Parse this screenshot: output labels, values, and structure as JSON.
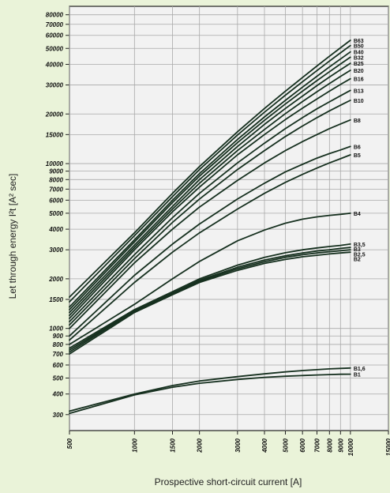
{
  "chart_data": {
    "type": "line",
    "title": "",
    "xlabel": "Prospective short-circuit current [A]",
    "ylabel": "Let through energy I²t [A² sec]",
    "x_scale": "log",
    "y_scale": "log",
    "xlim": [
      500,
      15000
    ],
    "ylim": [
      240,
      90000
    ],
    "grid": true,
    "x_ticks": [
      500,
      1000,
      1500,
      2000,
      3000,
      4000,
      5000,
      6000,
      7000,
      8000,
      9000,
      10000,
      15000
    ],
    "x_tick_labels": [
      "500",
      "1000",
      "1500",
      "2000",
      "3000",
      "4000",
      "5000",
      "6000",
      "7000",
      "8000",
      "9000",
      "10000",
      "15000"
    ],
    "y_ticks": [
      300,
      400,
      500,
      600,
      700,
      800,
      900,
      1000,
      1500,
      2000,
      3000,
      4000,
      5000,
      6000,
      7000,
      8000,
      9000,
      10000,
      15000,
      20000,
      30000,
      40000,
      50000,
      60000,
      70000,
      80000
    ],
    "y_tick_labels": [
      "300",
      "400",
      "500",
      "600",
      "700",
      "800",
      "900",
      "1000",
      "1500",
      "2000",
      "3000",
      "4000",
      "5000",
      "6000",
      "7000",
      "8000",
      "9000",
      "10000",
      "15000",
      "20000",
      "30000",
      "40000",
      "50000",
      "60000",
      "70000",
      "80000"
    ],
    "x": [
      500,
      1000,
      1500,
      2000,
      3000,
      4000,
      5000,
      6000,
      7000,
      8000,
      9000,
      10000
    ],
    "series": [
      {
        "name": "B1",
        "values": [
          305,
          395,
          440,
          465,
          490,
          505,
          513,
          518,
          522,
          525,
          527,
          528
        ]
      },
      {
        "name": "B1,6",
        "values": [
          315,
          400,
          450,
          480,
          510,
          530,
          545,
          555,
          562,
          568,
          572,
          575
        ]
      },
      {
        "name": "B2",
        "values": [
          700,
          1250,
          1600,
          1900,
          2250,
          2480,
          2620,
          2720,
          2780,
          2830,
          2870,
          2900
        ]
      },
      {
        "name": "B2,5",
        "values": [
          720,
          1270,
          1620,
          1930,
          2300,
          2540,
          2700,
          2800,
          2870,
          2920,
          2960,
          3000
        ]
      },
      {
        "name": "B3",
        "values": [
          740,
          1280,
          1640,
          1960,
          2350,
          2600,
          2760,
          2870,
          2950,
          3000,
          3060,
          3100
        ]
      },
      {
        "name": "B3,5",
        "values": [
          760,
          1300,
          1670,
          2000,
          2420,
          2700,
          2880,
          3000,
          3080,
          3140,
          3190,
          3250
        ]
      },
      {
        "name": "B4",
        "values": [
          800,
          1400,
          2000,
          2550,
          3400,
          3950,
          4350,
          4600,
          4750,
          4850,
          4920,
          5000
        ]
      },
      {
        "name": "B5",
        "values": [
          850,
          1900,
          2900,
          3800,
          5300,
          6600,
          7700,
          8600,
          9400,
          10100,
          10700,
          11300
        ]
      },
      {
        "name": "B6",
        "values": [
          900,
          2100,
          3250,
          4300,
          6100,
          7600,
          8900,
          9900,
          10800,
          11500,
          12100,
          12700
        ]
      },
      {
        "name": "B8",
        "values": [
          1000,
          2500,
          4000,
          5450,
          7900,
          10100,
          12000,
          13600,
          15000,
          16300,
          17400,
          18400
        ]
      },
      {
        "name": "B10",
        "values": [
          1050,
          2650,
          4400,
          6100,
          9200,
          12000,
          14600,
          16900,
          19000,
          20900,
          22600,
          24200
        ]
      },
      {
        "name": "B13",
        "values": [
          1100,
          2800,
          4700,
          6600,
          10100,
          13300,
          16300,
          19000,
          21500,
          23700,
          25800,
          27800
        ]
      },
      {
        "name": "B16",
        "values": [
          1150,
          3000,
          5100,
          7200,
          11300,
          15000,
          18500,
          21700,
          24700,
          27500,
          30200,
          32700
        ]
      },
      {
        "name": "B20",
        "values": [
          1200,
          3100,
          5300,
          7600,
          12000,
          16100,
          20100,
          23800,
          27300,
          30600,
          33800,
          36800
        ]
      },
      {
        "name": "B25",
        "values": [
          1250,
          3200,
          5500,
          8000,
          12700,
          17300,
          21600,
          25700,
          29700,
          33500,
          37100,
          40600
        ]
      },
      {
        "name": "B32",
        "values": [
          1300,
          3350,
          5800,
          8400,
          13400,
          18300,
          23000,
          27500,
          31900,
          36100,
          40200,
          44200
        ]
      },
      {
        "name": "B40",
        "values": [
          1350,
          3450,
          6000,
          8700,
          14000,
          19200,
          24200,
          29100,
          33900,
          38600,
          43100,
          47600
        ]
      },
      {
        "name": "B50",
        "values": [
          1450,
          3650,
          6300,
          9200,
          14900,
          20500,
          26000,
          31400,
          36700,
          41900,
          47000,
          52000
        ]
      },
      {
        "name": "B63",
        "values": [
          1550,
          3800,
          6600,
          9600,
          15600,
          21600,
          27500,
          33300,
          39100,
          44800,
          50400,
          56000
        ]
      }
    ]
  }
}
